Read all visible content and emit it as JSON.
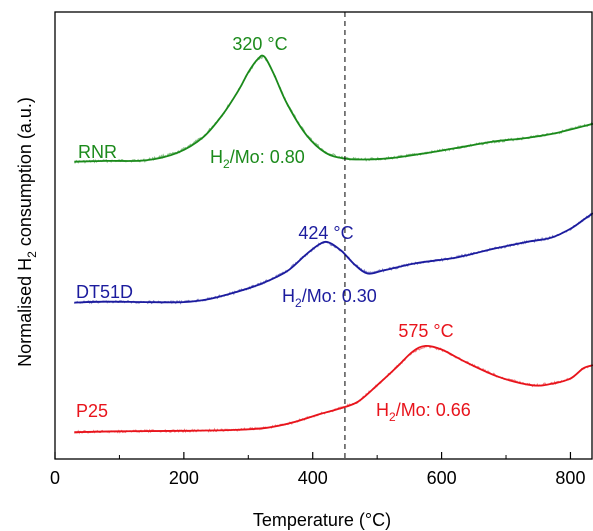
{
  "chart_data": {
    "type": "line",
    "xlabel": "Temperature (°C)",
    "ylabel_main": "Normalised H",
    "ylabel_sub": "2",
    "ylabel_tail": " consumption (a.u.)",
    "xlim": [
      0,
      835
    ],
    "ylim": [
      0,
      100
    ],
    "xticks": [
      0,
      200,
      400,
      600,
      800
    ],
    "xtick_labels": [
      "0",
      "200",
      "400",
      "600",
      "800"
    ],
    "reference_line_x": 450,
    "series": [
      {
        "name": "RNR",
        "color": "#1b8a1b",
        "x": [
          30,
          80,
          140,
          190,
          230,
          260,
          285,
          300,
          315,
          325,
          340,
          360,
          390,
          420,
          450,
          480,
          520,
          570,
          620,
          680,
          730,
          780,
          835
        ],
        "y": [
          66.5,
          66.7,
          66.8,
          68.5,
          72.0,
          77.0,
          82.5,
          86.5,
          89.5,
          90.0,
          86.0,
          79.5,
          72.5,
          68.5,
          67.2,
          67.0,
          67.3,
          68.3,
          69.5,
          71.0,
          71.8,
          73.0,
          75.0
        ],
        "label_text": "RNR",
        "peak_text": "320 °C",
        "ratio_main": "H",
        "ratio_sub": "2",
        "ratio_tail": "/Mo: 0.80"
      },
      {
        "name": "DT51D",
        "color": "#1c1c9e",
        "x": [
          30,
          80,
          140,
          200,
          240,
          280,
          320,
          360,
          390,
          410,
          424,
          445,
          465,
          485,
          510,
          560,
          620,
          680,
          730,
          770,
          800,
          820,
          835
        ],
        "y": [
          35.0,
          35.2,
          35.1,
          35.1,
          35.8,
          37.3,
          39.2,
          42.0,
          45.8,
          48.0,
          48.5,
          46.5,
          43.5,
          41.5,
          42.2,
          43.8,
          45.0,
          47.0,
          48.5,
          49.5,
          51.5,
          53.5,
          55.0
        ],
        "label_text": "DT51D",
        "peak_text": "424 °C",
        "ratio_main": "H",
        "ratio_sub": "2",
        "ratio_tail": "/Mo: 0.30"
      },
      {
        "name": "P25",
        "color": "#e8141c",
        "x": [
          30,
          100,
          200,
          280,
          330,
          370,
          410,
          440,
          470,
          500,
          530,
          555,
          575,
          600,
          640,
          690,
          740,
          770,
          800,
          820,
          835
        ],
        "y": [
          6.0,
          6.2,
          6.3,
          6.5,
          7.0,
          8.2,
          10.0,
          11.2,
          12.8,
          16.5,
          20.5,
          24.0,
          25.3,
          24.5,
          21.5,
          18.3,
          16.5,
          16.8,
          18.0,
          20.3,
          21.0
        ],
        "label_text": "P25",
        "peak_text": "575 °C",
        "ratio_main": "H",
        "ratio_sub": "2",
        "ratio_tail": "/Mo: 0.66"
      }
    ]
  }
}
